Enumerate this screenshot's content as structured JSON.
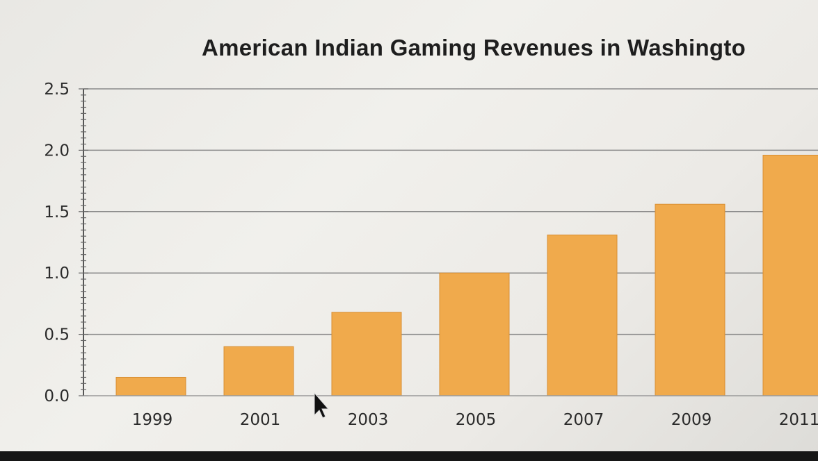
{
  "chart_data": {
    "type": "bar",
    "title": "American Indian Gaming Revenues in Washingto",
    "xlabel": "",
    "ylabel": "",
    "categories": [
      "1999",
      "2001",
      "2003",
      "2005",
      "2007",
      "2009",
      "2011"
    ],
    "values": [
      0.15,
      0.4,
      0.68,
      1.0,
      1.31,
      1.56,
      1.96
    ],
    "ylim": [
      0,
      2.5
    ],
    "yticks": [
      "0.0",
      "0.5",
      "1.0",
      "1.5",
      "2.0",
      "2.5"
    ],
    "grid": true,
    "bar_color": "#f0aa4c"
  }
}
